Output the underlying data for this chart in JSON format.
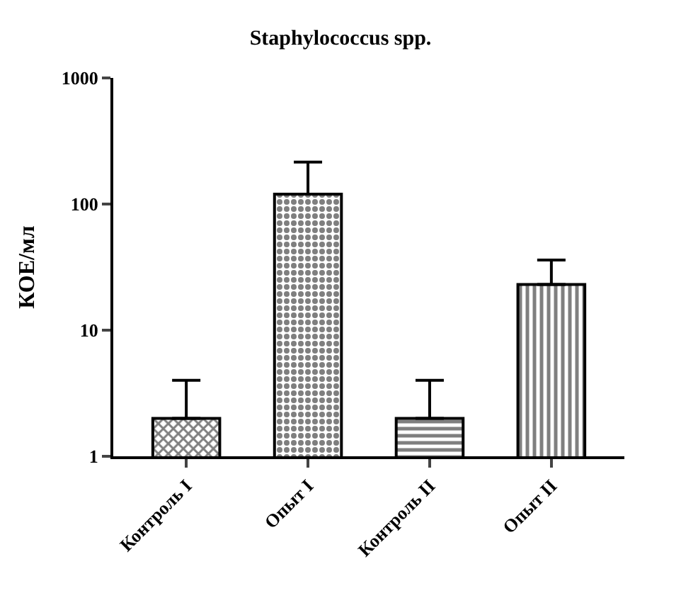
{
  "chart_data": {
    "type": "bar",
    "title": "Staphylococcus spp.",
    "ylabel": "КОЕ/мл",
    "categories": [
      "Контроль I",
      "Опыт I",
      "Контроль II",
      "Опыт II"
    ],
    "values": [
      2,
      120,
      2,
      23
    ],
    "errors": [
      [
        2,
        4
      ],
      [
        120,
        215
      ],
      [
        2,
        4
      ],
      [
        23,
        36
      ]
    ],
    "color": "#000000",
    "log": true,
    "ylim": [
      1,
      1000
    ],
    "yticks": [
      1,
      10,
      100,
      1000
    ]
  }
}
